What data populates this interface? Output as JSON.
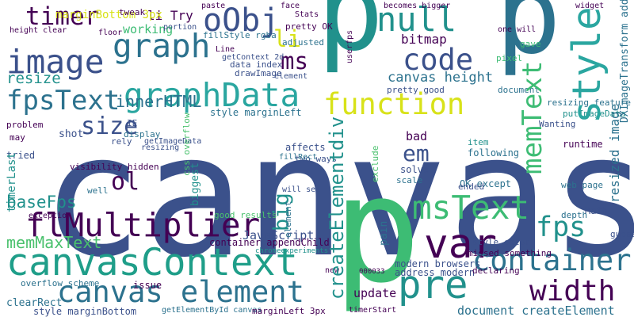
{
  "words": [
    {
      "text": "canvas",
      "color": "#3b518b",
      "vertical": false
    },
    {
      "text": "p",
      "color": "#21918c",
      "vertical": false
    },
    {
      "text": "p",
      "color": "#2c728e",
      "vertical": false
    },
    {
      "text": "p",
      "color": "#3dbc74",
      "vertical": false
    },
    {
      "text": "canvasContext",
      "color": "#1f9e89",
      "vertical": false
    },
    {
      "text": "flMultiplier",
      "color": "#440154",
      "vertical": false
    },
    {
      "text": "graphData",
      "color": "#2aa6a0",
      "vertical": false
    },
    {
      "text": "graph",
      "color": "#2c728e",
      "vertical": false
    },
    {
      "text": "image",
      "color": "#3b518b",
      "vertical": false
    },
    {
      "text": "fpsText",
      "color": "#2c728e",
      "vertical": false
    },
    {
      "text": "canvas element",
      "color": "#2c728e",
      "vertical": false
    },
    {
      "text": "memMaxText",
      "color": "#4ac16d",
      "vertical": false
    },
    {
      "text": "null",
      "color": "#21918c",
      "vertical": false
    },
    {
      "text": "oObj",
      "color": "#3b518b",
      "vertical": false
    },
    {
      "text": "timer",
      "color": "#440154",
      "vertical": false
    },
    {
      "text": "code",
      "color": "#3b518b",
      "vertical": false
    },
    {
      "text": "function",
      "color": "#d8e219",
      "vertical": false
    },
    {
      "text": "var",
      "color": "#440154",
      "vertical": false
    },
    {
      "text": "pre",
      "color": "#21918c",
      "vertical": false
    },
    {
      "text": "container",
      "color": "#2c728e",
      "vertical": false
    },
    {
      "text": "width",
      "color": "#440154",
      "vertical": false
    },
    {
      "text": "msText",
      "color": "#3dbc74",
      "vertical": false
    },
    {
      "text": "fps",
      "color": "#21918c",
      "vertical": false
    },
    {
      "text": "ms",
      "color": "#440154",
      "vertical": false
    },
    {
      "text": "size",
      "color": "#3b518b",
      "vertical": false
    },
    {
      "text": "ol",
      "color": "#440154",
      "vertical": false
    },
    {
      "text": "em",
      "color": "#3b518b",
      "vertical": false
    },
    {
      "text": "li",
      "color": "#d8e219",
      "vertical": false
    },
    {
      "text": "innerHTML",
      "color": "#2c728e",
      "vertical": false
    },
    {
      "text": "resize",
      "color": "#21918c",
      "vertical": false
    },
    {
      "text": "baseFps",
      "color": "#21918c",
      "vertical": false
    },
    {
      "text": "li Try",
      "color": "#440154",
      "vertical": false
    },
    {
      "text": "working",
      "color": "#3dbc74",
      "vertical": false
    },
    {
      "text": "bitmap",
      "color": "#440154",
      "vertical": false
    },
    {
      "text": "canvas height",
      "color": "#2c728e",
      "vertical": false
    },
    {
      "text": "document",
      "color": "#2c728e",
      "vertical": false
    },
    {
      "text": "document createElement",
      "color": "#2c728e",
      "vertical": false
    },
    {
      "text": "update",
      "color": "#440154",
      "vertical": false
    },
    {
      "text": "JavaScript",
      "color": "#3b518b",
      "vertical": false
    },
    {
      "text": "container appendChild",
      "color": "#440154",
      "vertical": false
    },
    {
      "text": "style color",
      "color": "#3b518b",
      "vertical": false
    },
    {
      "text": "style marginLeft",
      "color": "#2c728e",
      "vertical": false
    },
    {
      "text": "good results",
      "color": "#4ac16d",
      "vertical": false
    },
    {
      "text": "OK except",
      "color": "#2c728e",
      "vertical": false
    },
    {
      "text": "scale",
      "color": "#2c728e",
      "vertical": false
    },
    {
      "text": "rely",
      "color": "#3b518b",
      "vertical": false
    },
    {
      "text": "affects",
      "color": "#3b518b",
      "vertical": false
    },
    {
      "text": "two ways",
      "color": "#3b518b",
      "vertical": false
    },
    {
      "text": "pretty good",
      "color": "#3b518b",
      "vertical": false
    },
    {
      "text": "bad",
      "color": "#440154",
      "vertical": false
    },
    {
      "text": "following",
      "color": "#2c728e",
      "vertical": false
    },
    {
      "text": "item",
      "color": "#21918c",
      "vertical": false
    },
    {
      "text": "solve",
      "color": "#3b518b",
      "vertical": false
    },
    {
      "text": "Wanting",
      "color": "#3b518b",
      "vertical": false
    },
    {
      "text": "resizing feature",
      "color": "#2c728e",
      "vertical": false
    },
    {
      "text": "putImageData",
      "color": "#21918c",
      "vertical": false
    },
    {
      "text": "runtime",
      "color": "#440154",
      "vertical": false
    },
    {
      "text": "web page",
      "color": "#2c728e",
      "vertical": false
    },
    {
      "text": "Math",
      "color": "#3b518b",
      "vertical": false
    },
    {
      "text": "modern browsers",
      "color": "#3b518b",
      "vertical": false
    },
    {
      "text": "address modern",
      "color": "#3b518b",
      "vertical": false
    },
    {
      "text": "missed something",
      "color": "#440154",
      "vertical": false
    },
    {
      "text": "declaring",
      "color": "#440154",
      "vertical": false
    },
    {
      "text": "timerStart",
      "color": "#440154",
      "vertical": false
    },
    {
      "text": "clearRect",
      "color": "#2c728e",
      "vertical": false
    },
    {
      "text": "overflow scheme",
      "color": "#2c728e",
      "vertical": false
    },
    {
      "text": "issue",
      "color": "#440154",
      "vertical": false
    },
    {
      "text": "style marginBottom",
      "color": "#3b518b",
      "vertical": false
    },
    {
      "text": "getElementById canvas",
      "color": "#2c728e",
      "vertical": false
    },
    {
      "text": "marginLeft 3px",
      "color": "#440154",
      "vertical": false
    },
    {
      "text": "marginBottom 3px",
      "color": "#d8e219",
      "vertical": false
    },
    {
      "text": "height clear",
      "color": "#440154",
      "vertical": false
    },
    {
      "text": "fillStyle rgba",
      "color": "#2c728e",
      "vertical": false
    },
    {
      "text": "getContext 2d",
      "color": "#3b518b",
      "vertical": false
    },
    {
      "text": "drawImage",
      "color": "#3b518b",
      "vertical": false
    },
    {
      "text": "portion",
      "color": "#3b518b",
      "vertical": false
    },
    {
      "text": "adjusted",
      "color": "#2c728e",
      "vertical": false
    },
    {
      "text": "pretty OK",
      "color": "#440154",
      "vertical": false
    },
    {
      "text": "element",
      "color": "#3b518b",
      "vertical": false
    },
    {
      "text": "data index",
      "color": "#3b518b",
      "vertical": false
    },
    {
      "text": "problem",
      "color": "#440154",
      "vertical": false
    },
    {
      "text": "shot",
      "color": "#3b518b",
      "vertical": false
    },
    {
      "text": "display",
      "color": "#2c728e",
      "vertical": false
    },
    {
      "text": "tried",
      "color": "#3b518b",
      "vertical": false
    },
    {
      "text": "visibility hidden",
      "color": "#440154",
      "vertical": false
    },
    {
      "text": "resizing",
      "color": "#3b518b",
      "vertical": false
    },
    {
      "text": "well",
      "color": "#2c728e",
      "vertical": false
    },
    {
      "text": "tweak",
      "color": "#440154",
      "vertical": false
    },
    {
      "text": "face",
      "color": "#440154",
      "vertical": false
    },
    {
      "text": "becomes bigger",
      "color": "#440154",
      "vertical": false
    },
    {
      "text": "one will",
      "color": "#440154",
      "vertical": false
    },
    {
      "text": "gave",
      "color": "#3dbc74",
      "vertical": false
    },
    {
      "text": "pixel",
      "color": "#3dbc74",
      "vertical": false
    },
    {
      "text": "exception",
      "color": "#440154",
      "vertical": false
    },
    {
      "text": "IE",
      "color": "#3b518b",
      "vertical": false
    },
    {
      "text": "may",
      "color": "#440154",
      "vertical": false
    },
    {
      "text": "widget",
      "color": "#440154",
      "vertical": false
    },
    {
      "text": "Stats",
      "color": "#440154",
      "vertical": false
    },
    {
      "text": "paste",
      "color": "#440154",
      "vertical": false
    },
    {
      "text": "floor",
      "color": "#440154",
      "vertical": false
    },
    {
      "text": "Line",
      "color": "#440154",
      "vertical": false
    },
    {
      "text": "ended",
      "color": "#3b518b",
      "vertical": false
    },
    {
      "text": "guess",
      "color": "#3b518b",
      "vertical": false
    },
    {
      "text": "depth",
      "color": "#2c728e",
      "vertical": false
    },
    {
      "text": "getImageData",
      "color": "#3b518b",
      "vertical": false
    },
    {
      "text": "fillRect",
      "color": "#2c728e",
      "vertical": false
    },
    {
      "text": "will see",
      "color": "#3b518b",
      "vertical": false
    },
    {
      "text": "000033",
      "color": "#440154",
      "vertical": false
    },
    {
      "text": "chromeexperiments",
      "color": "#21918c",
      "vertical": false
    },
    {
      "text": "new",
      "color": "#440154",
      "vertical": false
    },
    {
      "text": "style",
      "color": "#2aa6a0",
      "vertical": true
    },
    {
      "text": "memText",
      "color": "#3dbc74",
      "vertical": true
    },
    {
      "text": "createElementdiv",
      "color": "#21918c",
      "vertical": true
    },
    {
      "text": "big",
      "color": "#21918c",
      "vertical": true
    },
    {
      "text": "resized image",
      "color": "#2c728e",
      "vertical": true
    },
    {
      "text": "DXImageTransform addon",
      "color": "#2c728e",
      "vertical": true
    },
    {
      "text": "timerLast",
      "color": "#21918c",
      "vertical": true
    },
    {
      "text": "biggest",
      "color": "#21918c",
      "vertical": true
    },
    {
      "text": "css overflow",
      "color": "#4ac16d",
      "vertical": true
    },
    {
      "text": "exclude",
      "color": "#4ac16d",
      "vertical": true
    },
    {
      "text": "pain",
      "color": "#2c728e",
      "vertical": true
    },
    {
      "text": "userfps",
      "color": "#440154",
      "vertical": true
    },
    {
      "text": "element",
      "color": "#2c728e",
      "vertical": true
    }
  ]
}
